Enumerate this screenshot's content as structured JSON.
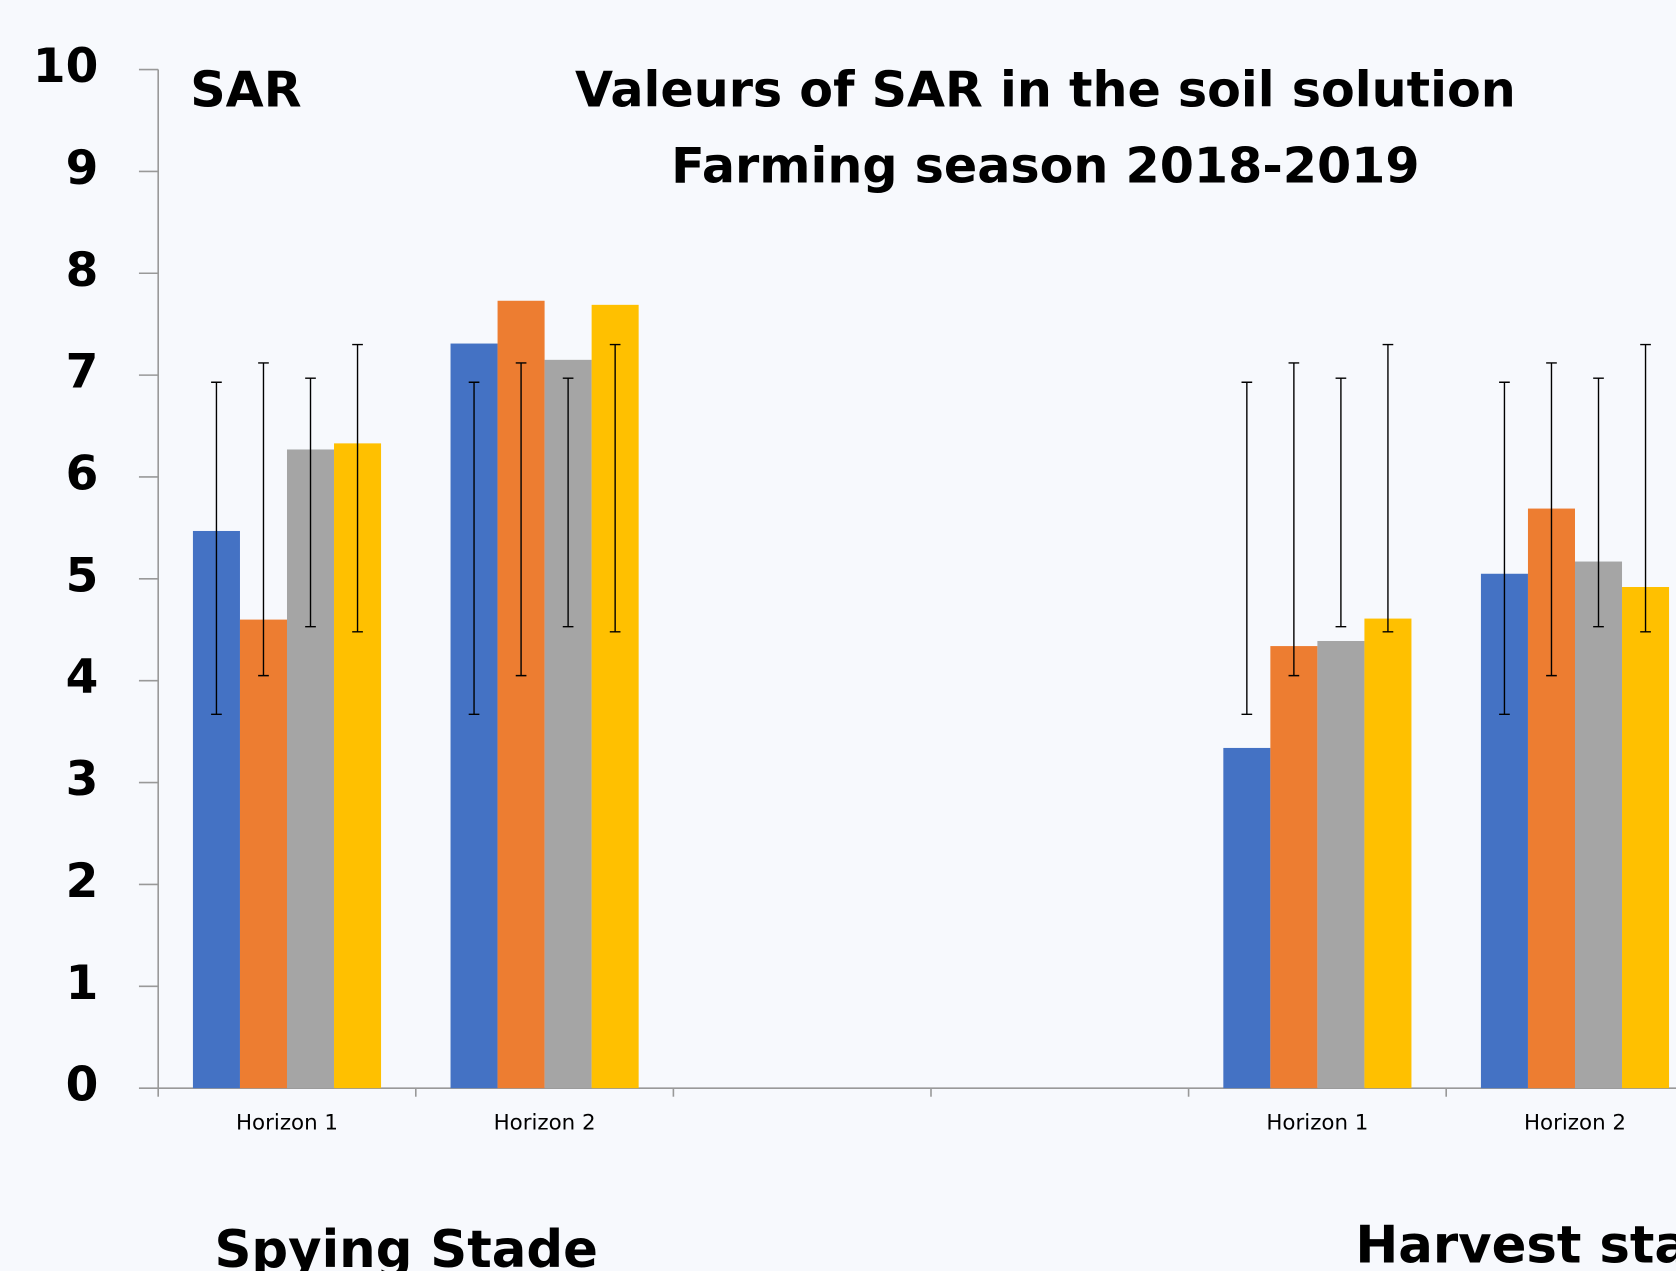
{
  "chart_data": {
    "type": "bar",
    "label": "SAR",
    "title": [
      "Valeurs of SAR  in the soil solution",
      "Farming season  2018-2019"
    ],
    "group_labels": [
      "Spying Stade",
      "Harvest stage"
    ],
    "categories": [
      "Horizon 1",
      "Horizon 2",
      null,
      null,
      "Horizon 1",
      "Horizon 2"
    ],
    "series": [
      {
        "color": "#4472c4",
        "values": [
          5.47,
          7.31,
          null,
          null,
          3.34,
          5.05
        ],
        "error_low": [
          3.67,
          3.67,
          null,
          null,
          3.67,
          3.67
        ],
        "error_high": [
          6.93,
          6.93,
          null,
          null,
          6.93,
          6.93
        ]
      },
      {
        "color": "#ed7d31",
        "values": [
          4.6,
          7.73,
          null,
          null,
          4.34,
          5.69
        ],
        "error_low": [
          4.05,
          4.05,
          null,
          null,
          4.05,
          4.05
        ],
        "error_high": [
          7.12,
          7.12,
          null,
          null,
          7.12,
          7.12
        ]
      },
      {
        "color": "#a5a5a5",
        "values": [
          6.27,
          7.15,
          null,
          null,
          4.39,
          5.17
        ],
        "error_low": [
          4.53,
          4.53,
          null,
          null,
          4.53,
          4.53
        ],
        "error_high": [
          6.97,
          6.97,
          null,
          null,
          6.97,
          6.97
        ]
      },
      {
        "color": "#ffc000",
        "values": [
          6.33,
          7.69,
          null,
          null,
          4.61,
          4.92
        ],
        "error_low": [
          4.48,
          4.48,
          null,
          null,
          4.48,
          4.48
        ],
        "error_high": [
          7.3,
          7.3,
          null,
          null,
          7.3,
          7.3
        ]
      }
    ],
    "ylim": [
      0,
      10
    ],
    "yticks": [
      0,
      1,
      2,
      3,
      4,
      5,
      6,
      7,
      8,
      9,
      10
    ]
  }
}
